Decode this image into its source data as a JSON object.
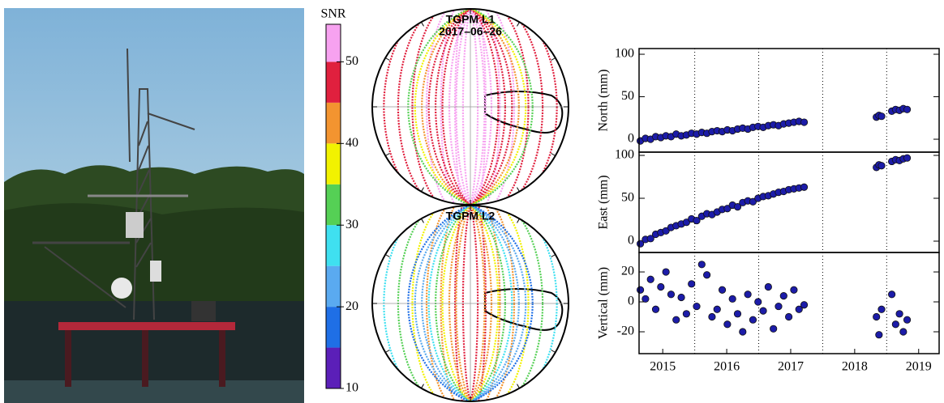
{
  "chart_data": [
    {
      "type": "colorbar",
      "title": "SNR",
      "ylim": [
        10,
        54.6
      ],
      "yticks": [
        10,
        20,
        30,
        40,
        50
      ],
      "levels": [
        10,
        15,
        20,
        25,
        30,
        35,
        40,
        45,
        50
      ],
      "colors": [
        "#5b1fb8",
        "#1f6fe6",
        "#5aaaf0",
        "#3fe0f0",
        "#55d055",
        "#f2f200",
        "#f39430",
        "#e0203e",
        "#f7a2f0"
      ]
    },
    {
      "type": "skyplot",
      "title": "TGPM L1",
      "subtitle": "2017–06–26"
    },
    {
      "type": "skyplot",
      "title": "TGPM L2"
    },
    {
      "type": "scatter",
      "ylabel": "North (mm)",
      "color": "#1c1ca8",
      "xlim": [
        2015.13,
        2019.82
      ],
      "ylim": [
        -15.2,
        106.7
      ],
      "yticks": [
        0,
        50,
        100
      ],
      "xgrid": [
        2016,
        2017,
        2018,
        2019
      ],
      "x": [
        2015.15,
        2015.23,
        2015.31,
        2015.39,
        2015.47,
        2015.55,
        2015.63,
        2015.71,
        2015.79,
        2015.87,
        2015.95,
        2016.03,
        2016.11,
        2016.19,
        2016.27,
        2016.35,
        2016.43,
        2016.51,
        2016.59,
        2016.67,
        2016.75,
        2016.83,
        2016.91,
        2016.99,
        2017.07,
        2017.15,
        2017.23,
        2017.31,
        2017.39,
        2017.47,
        2017.55,
        2017.63,
        2017.71,
        2018.84,
        2018.88,
        2018.92,
        2019.08,
        2019.14,
        2019.2,
        2019.26,
        2019.32
      ],
      "values": [
        -2,
        1,
        0,
        3,
        2,
        4,
        3,
        6,
        4,
        5,
        7,
        6,
        8,
        7,
        9,
        10,
        9,
        11,
        10,
        12,
        13,
        12,
        14,
        15,
        14,
        16,
        17,
        16,
        18,
        19,
        20,
        21,
        20,
        26,
        28,
        27,
        33,
        35,
        34,
        36,
        35
      ]
    },
    {
      "type": "scatter",
      "ylabel": "East (mm)",
      "color": "#1c1ca8",
      "xlim": [
        2015.13,
        2019.82
      ],
      "ylim": [
        -13.2,
        103.8
      ],
      "yticks": [
        0,
        50,
        100
      ],
      "xgrid": [
        2016,
        2017,
        2018,
        2019
      ],
      "x": [
        2015.15,
        2015.23,
        2015.31,
        2015.39,
        2015.47,
        2015.55,
        2015.63,
        2015.71,
        2015.79,
        2015.87,
        2015.95,
        2016.03,
        2016.11,
        2016.19,
        2016.27,
        2016.35,
        2016.43,
        2016.51,
        2016.59,
        2016.67,
        2016.75,
        2016.83,
        2016.91,
        2016.99,
        2017.07,
        2017.15,
        2017.23,
        2017.31,
        2017.39,
        2017.47,
        2017.55,
        2017.63,
        2017.71,
        2018.84,
        2018.88,
        2018.92,
        2019.08,
        2019.14,
        2019.2,
        2019.26,
        2019.32
      ],
      "values": [
        -3,
        2,
        3,
        8,
        10,
        12,
        16,
        18,
        20,
        22,
        26,
        24,
        29,
        32,
        31,
        34,
        37,
        38,
        42,
        40,
        45,
        47,
        46,
        50,
        52,
        53,
        55,
        57,
        58,
        60,
        61,
        62,
        63,
        86,
        89,
        88,
        93,
        95,
        94,
        96,
        97
      ]
    },
    {
      "type": "scatter",
      "ylabel": "Vertical (mm)",
      "color": "#1c1ca8",
      "xlim": [
        2015.13,
        2019.82
      ],
      "ylim": [
        -34.6,
        33
      ],
      "yticks": [
        -20,
        0,
        20
      ],
      "xgrid": [
        2016,
        2017,
        2018,
        2019
      ],
      "xticks": [
        {
          "value": 2015.5,
          "label": "2015"
        },
        {
          "value": 2016.5,
          "label": "2016"
        },
        {
          "value": 2017.5,
          "label": "2017"
        },
        {
          "value": 2018.5,
          "label": "2018"
        },
        {
          "value": 2019.5,
          "label": "2019"
        }
      ],
      "x": [
        2015.15,
        2015.23,
        2015.31,
        2015.39,
        2015.47,
        2015.55,
        2015.63,
        2015.71,
        2015.79,
        2015.87,
        2015.95,
        2016.03,
        2016.11,
        2016.19,
        2016.27,
        2016.35,
        2016.43,
        2016.51,
        2016.59,
        2016.67,
        2016.75,
        2016.83,
        2016.91,
        2016.99,
        2017.07,
        2017.15,
        2017.23,
        2017.31,
        2017.39,
        2017.47,
        2017.55,
        2017.63,
        2017.71,
        2018.84,
        2018.88,
        2018.92,
        2019.08,
        2019.14,
        2019.2,
        2019.26,
        2019.32
      ],
      "values": [
        8,
        2,
        15,
        -5,
        10,
        20,
        5,
        -12,
        3,
        -8,
        12,
        -3,
        25,
        18,
        -10,
        -5,
        8,
        -15,
        2,
        -8,
        -20,
        5,
        -12,
        0,
        -6,
        10,
        -18,
        -3,
        4,
        -10,
        8,
        -5,
        -2,
        -10,
        -22,
        -5,
        5,
        -15,
        -8,
        -20,
        -12
      ]
    }
  ]
}
